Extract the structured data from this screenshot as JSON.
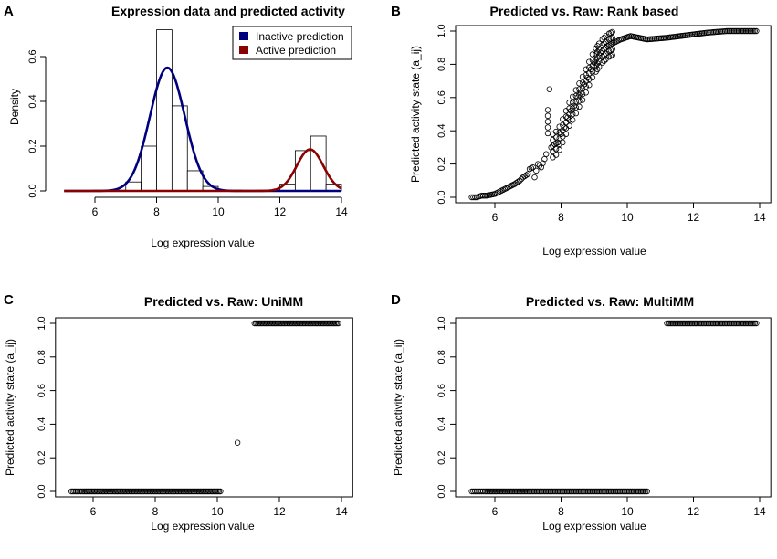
{
  "chart_data": [
    {
      "type": "histogram",
      "panel_label": "A",
      "title": "Expression data and predicted activity",
      "xlabel": "Log expression value",
      "ylabel": "Density",
      "xlim": [
        5,
        14
      ],
      "ylim": [
        0,
        0.72
      ],
      "xticks": [
        "6",
        "8",
        "10",
        "12",
        "14"
      ],
      "yticks": [
        "0.0",
        "0.2",
        "0.4",
        "0.6"
      ],
      "histogram": {
        "bins": [
          [
            6.5,
            7.0
          ],
          [
            7.0,
            7.5
          ],
          [
            7.5,
            8.0
          ],
          [
            8.0,
            8.5
          ],
          [
            8.5,
            9.0
          ],
          [
            9.0,
            9.5
          ],
          [
            9.5,
            10.0
          ],
          [
            11.5,
            12.0
          ],
          [
            12.0,
            12.5
          ],
          [
            12.5,
            13.0
          ],
          [
            13.0,
            13.5
          ],
          [
            13.5,
            14.0
          ]
        ],
        "density": [
          0.003,
          0.04,
          0.2,
          0.72,
          0.38,
          0.09,
          0.02,
          0.003,
          0.03,
          0.18,
          0.245,
          0.03
        ]
      },
      "series": [
        {
          "name": "Inactive prediction",
          "color": "#00007f",
          "mean": 8.35,
          "sd": 0.565,
          "weight": 0.78
        },
        {
          "name": "Active prediction",
          "color": "#8b0000",
          "mean": 12.98,
          "sd": 0.43,
          "weight": 0.2
        }
      ],
      "legend": [
        "Inactive prediction",
        "Active prediction"
      ],
      "legend_position": "top-right"
    },
    {
      "type": "scatter",
      "panel_label": "B",
      "title": "Predicted vs. Raw: Rank based",
      "xlabel": "Log expression value",
      "ylabel": "Predicted activity state (a_ij)",
      "xlim": [
        5.2,
        13.95
      ],
      "ylim": [
        0,
        1
      ],
      "xticks": [
        "6",
        "8",
        "10",
        "12",
        "14"
      ],
      "yticks": [
        "0.0",
        "0.2",
        "0.4",
        "0.6",
        "0.8",
        "1.0"
      ],
      "points": [
        [
          5.3,
          0.0
        ],
        [
          5.45,
          0.0
        ],
        [
          5.6,
          0.01
        ],
        [
          5.75,
          0.01
        ],
        [
          6.0,
          0.02
        ],
        [
          6.1,
          0.03
        ],
        [
          6.2,
          0.04
        ],
        [
          6.3,
          0.05
        ],
        [
          6.6,
          0.08
        ],
        [
          6.75,
          0.1
        ],
        [
          6.85,
          0.12
        ],
        [
          7.0,
          0.14
        ],
        [
          7.05,
          0.17
        ],
        [
          7.15,
          0.18
        ],
        [
          7.2,
          0.12
        ],
        [
          7.3,
          0.2
        ],
        [
          7.4,
          0.18
        ],
        [
          7.5,
          0.23
        ],
        [
          7.55,
          0.26
        ],
        [
          7.65,
          0.65
        ],
        [
          7.7,
          0.3
        ],
        [
          7.8,
          0.32
        ],
        [
          7.9,
          0.33
        ],
        [
          8.0,
          0.38
        ],
        [
          8.1,
          0.42
        ],
        [
          8.2,
          0.48
        ],
        [
          8.3,
          0.52
        ],
        [
          8.4,
          0.55
        ],
        [
          8.5,
          0.6
        ],
        [
          8.6,
          0.63
        ],
        [
          8.7,
          0.68
        ],
        [
          8.8,
          0.72
        ],
        [
          8.9,
          0.77
        ],
        [
          9.0,
          0.81
        ],
        [
          9.2,
          0.87
        ],
        [
          9.4,
          0.91
        ],
        [
          9.6,
          0.93
        ],
        [
          9.8,
          0.95
        ],
        [
          10.1,
          0.97
        ],
        [
          10.6,
          0.95
        ],
        [
          11.2,
          0.96
        ],
        [
          11.6,
          0.97
        ],
        [
          12.0,
          0.98
        ],
        [
          12.4,
          0.99
        ],
        [
          13.0,
          1.0
        ],
        [
          13.5,
          1.0
        ],
        [
          13.9,
          1.0
        ]
      ]
    },
    {
      "type": "scatter",
      "panel_label": "C",
      "title": "Predicted vs. Raw: UniMM",
      "xlabel": "Log expression value",
      "ylabel": "Predicted activity state (a_ij)",
      "xlim": [
        5.2,
        13.95
      ],
      "ylim": [
        0,
        1
      ],
      "xticks": [
        "6",
        "8",
        "10",
        "12",
        "14"
      ],
      "yticks": [
        "0.0",
        "0.2",
        "0.4",
        "0.6",
        "0.8",
        "1.0"
      ],
      "points": [
        [
          5.3,
          0.0
        ],
        [
          5.5,
          0.0
        ],
        [
          5.7,
          0.0
        ],
        [
          6.0,
          0.0
        ],
        [
          6.3,
          0.0
        ],
        [
          6.7,
          0.0
        ],
        [
          7.0,
          0.0
        ],
        [
          7.5,
          0.0
        ],
        [
          8.0,
          0.0
        ],
        [
          8.5,
          0.0
        ],
        [
          9.0,
          0.0
        ],
        [
          9.5,
          0.0
        ],
        [
          9.8,
          0.0
        ],
        [
          10.1,
          0.0
        ],
        [
          10.65,
          0.29
        ],
        [
          11.2,
          1.0
        ],
        [
          11.6,
          1.0
        ],
        [
          12.0,
          1.0
        ],
        [
          12.5,
          1.0
        ],
        [
          13.0,
          1.0
        ],
        [
          13.5,
          1.0
        ],
        [
          13.9,
          1.0
        ]
      ]
    },
    {
      "type": "scatter",
      "panel_label": "D",
      "title": "Predicted vs. Raw: MultiMM",
      "xlabel": "Log expression value",
      "ylabel": "Predicted activity state (a_ij)",
      "xlim": [
        5.2,
        13.95
      ],
      "ylim": [
        0,
        1
      ],
      "xticks": [
        "6",
        "8",
        "10",
        "12",
        "14"
      ],
      "yticks": [
        "0.0",
        "0.2",
        "0.4",
        "0.6",
        "0.8",
        "1.0"
      ],
      "points": [
        [
          5.3,
          0.0
        ],
        [
          5.5,
          0.0
        ],
        [
          5.7,
          0.0
        ],
        [
          6.0,
          0.0
        ],
        [
          6.3,
          0.0
        ],
        [
          6.7,
          0.0
        ],
        [
          7.0,
          0.0
        ],
        [
          7.5,
          0.0
        ],
        [
          8.0,
          0.0
        ],
        [
          8.5,
          0.0
        ],
        [
          9.0,
          0.0
        ],
        [
          9.5,
          0.0
        ],
        [
          10.1,
          0.0
        ],
        [
          10.6,
          0.0
        ],
        [
          11.2,
          1.0
        ],
        [
          11.6,
          1.0
        ],
        [
          12.0,
          1.0
        ],
        [
          12.5,
          1.0
        ],
        [
          13.0,
          1.0
        ],
        [
          13.5,
          1.0
        ],
        [
          13.9,
          1.0
        ]
      ]
    }
  ]
}
